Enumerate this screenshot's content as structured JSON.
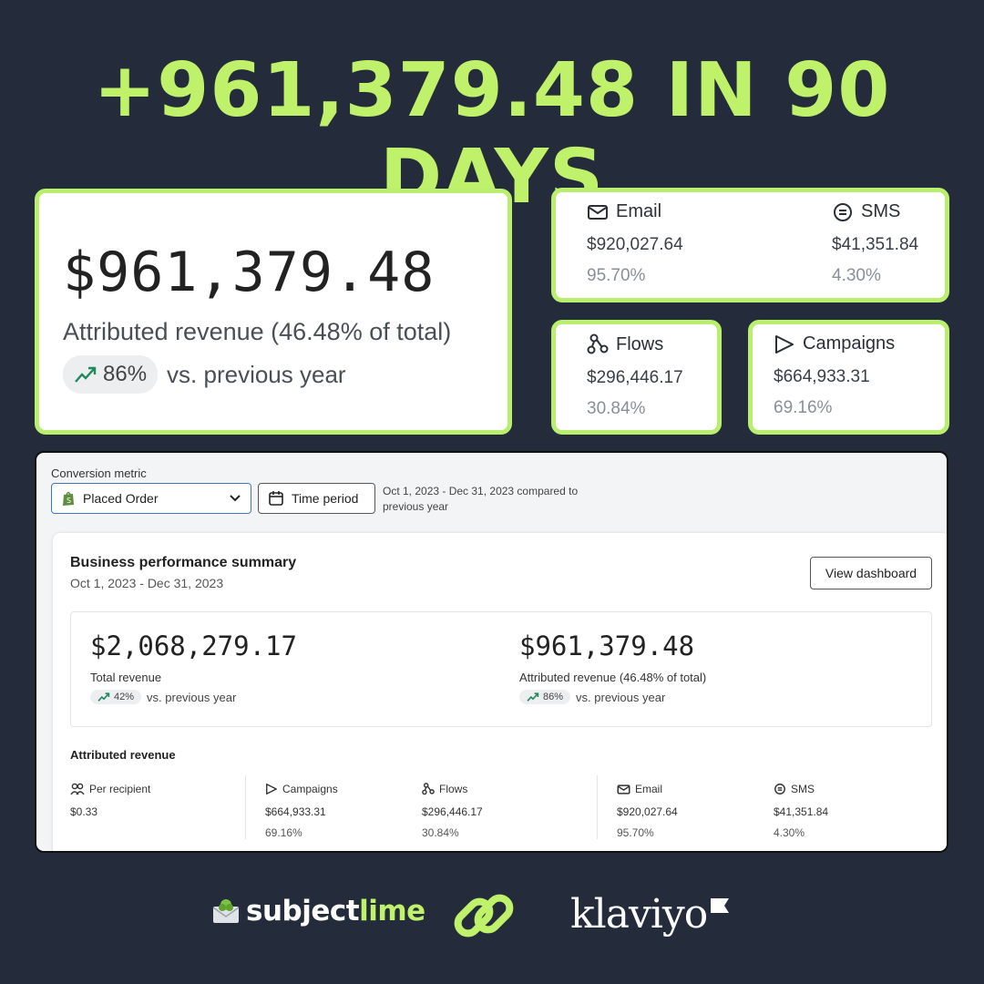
{
  "headline": "+961,379.48 IN 90 DAYS",
  "hero": {
    "amount": "$961,379.48",
    "label": "Attributed revenue (46.48% of total)",
    "delta": "86%",
    "delta_suffix": "vs. previous year"
  },
  "channels": {
    "email": {
      "name": "Email",
      "value": "$920,027.64",
      "pct": "95.70%"
    },
    "sms": {
      "name": "SMS",
      "value": "$41,351.84",
      "pct": "4.30%"
    },
    "flows": {
      "name": "Flows",
      "value": "$296,446.17",
      "pct": "30.84%"
    },
    "campaigns": {
      "name": "Campaigns",
      "value": "$664,933.31",
      "pct": "69.16%"
    }
  },
  "dashboard": {
    "conversion_label": "Conversion metric",
    "metric_selected": "Placed Order",
    "time_button": "Time period",
    "date_note": "Oct 1, 2023 - Dec 31, 2023 compared to previous year",
    "summary_title": "Business performance summary",
    "summary_date": "Oct 1, 2023 - Dec 31, 2023",
    "view_button": "View dashboard",
    "total": {
      "amount": "$2,068,279.17",
      "label": "Total revenue",
      "delta": "42%",
      "suffix": "vs. previous year"
    },
    "attributed": {
      "amount": "$961,379.48",
      "label": "Attributed revenue (46.48% of total)",
      "delta": "86%",
      "suffix": "vs. previous year"
    },
    "attr_title": "Attributed revenue",
    "breakdown": {
      "per_recipient": {
        "name": "Per recipient",
        "value": "$0.33"
      },
      "campaigns": {
        "name": "Campaigns",
        "value": "$664,933.31",
        "pct": "69.16%"
      },
      "flows": {
        "name": "Flows",
        "value": "$296,446.17",
        "pct": "30.84%"
      },
      "email": {
        "name": "Email",
        "value": "$920,027.64",
        "pct": "95.70%"
      },
      "sms": {
        "name": "SMS",
        "value": "$41,351.84",
        "pct": "4.30%"
      }
    }
  },
  "footer": {
    "brand1_a": "subject",
    "brand1_b": "lime",
    "brand2": "klaviyo"
  },
  "colors": {
    "accent": "#bff26a",
    "background": "#242c3b",
    "trend": "#1f8a5b"
  }
}
